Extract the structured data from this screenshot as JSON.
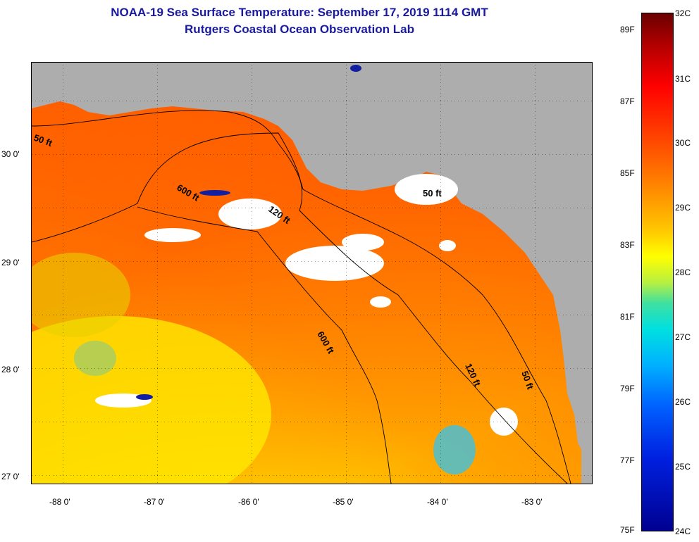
{
  "title": {
    "line1": "NOAA-19 Sea Surface Temperature:  September 17, 2019 1114 GMT",
    "line2": "Rutgers Coastal Ocean Observation Lab"
  },
  "lat_labels": [
    "30 0'",
    "29 0'",
    "28 0'",
    "27 0'"
  ],
  "lon_labels": [
    "-88 0'",
    "-87 0'",
    "-86 0'",
    "-85 0'",
    "-84 0'",
    "-83 0'"
  ],
  "contour_labels": [
    "50 ft",
    "600 ft",
    "120 ft",
    "50 ft",
    "600 ft",
    "120 ft",
    "50 ft"
  ],
  "colorbar": {
    "fahrenheit": [
      "89F",
      "87F",
      "85F",
      "83F",
      "81F",
      "79F",
      "77F",
      "75F"
    ],
    "celsius": [
      "32C",
      "31C",
      "30C",
      "29C",
      "28C",
      "27C",
      "26C",
      "25C",
      "24C"
    ]
  },
  "colors": {
    "land": "#adadad",
    "cloud": "#ffffff",
    "warm_water": "#ff5a00",
    "mid_water": "#ff9a00",
    "cool_water": "#ffe000",
    "title": "#1a1aa0"
  }
}
